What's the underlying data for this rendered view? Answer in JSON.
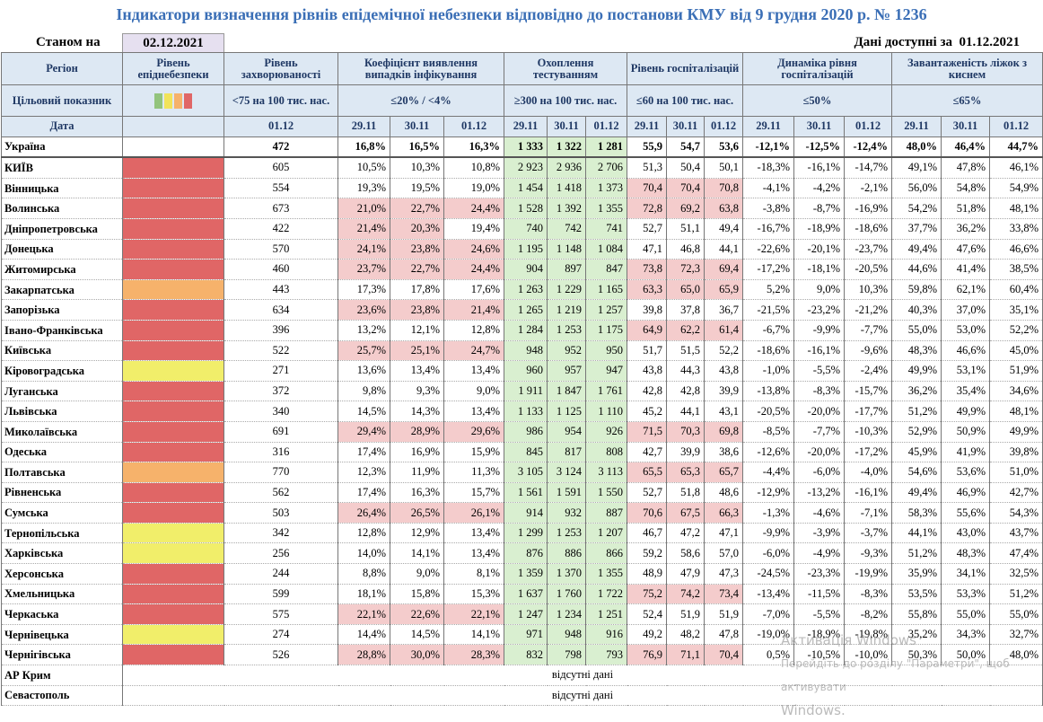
{
  "title": "Індикатори визначення рівнів епідемічної небезпеки відповідно до постанови КМУ від 9 грудня 2020 р. № 1236",
  "status": {
    "as_of_label": "Станом на",
    "as_of_date": "02.12.2021",
    "available_label": "Дані доступні за",
    "available_date": "01.12.2021"
  },
  "header": {
    "groups": [
      "Регіон",
      "Рівень епіднебезпеки",
      "Рівень захворюваності",
      "Коефіцієнт виявлення випадків інфікування",
      "Охоплення тестуванням",
      "Рівень госпіталізацій",
      "Динаміка рівня госпіталізацій",
      "Завантаженість ліжок з киснем"
    ],
    "target_label": "Цільовий показник",
    "targets": [
      "<75 на 100 тис. нас.",
      "≤20% / <4%",
      "≥300 на 100 тис. нас.",
      "≤60 на 100 тис. нас.",
      "≤50%",
      "≤65%"
    ],
    "date_label": "Дата",
    "dates": [
      "01.12",
      "29.11",
      "30.11",
      "01.12",
      "29.11",
      "30.11",
      "01.12",
      "29.11",
      "30.11",
      "01.12",
      "29.11",
      "30.11",
      "01.12",
      "29.11",
      "30.11",
      "01.12"
    ]
  },
  "level_legend_colors": [
    "#93c47d",
    "#f1e35a",
    "#f6b26b",
    "#e06666"
  ],
  "alert_color": "#f4cccc",
  "testing_color": "#d9efd0",
  "rows": [
    {
      "region": "Україна",
      "values": [
        "472",
        "16,8%",
        "16,5%",
        "16,3%",
        "1 333",
        "1 322",
        "1 281",
        "55,9",
        "54,7",
        "53,6",
        "-12,1%",
        "-12,5%",
        "-12,4%",
        "48,0%",
        "46,4%",
        "44,7%"
      ],
      "alert": []
    },
    {
      "region": "КИЇВ",
      "level_color": "#e06666",
      "values": [
        "605",
        "10,5%",
        "10,3%",
        "10,8%",
        "2 923",
        "2 936",
        "2 706",
        "51,3",
        "50,4",
        "50,1",
        "-18,3%",
        "-16,1%",
        "-14,7%",
        "49,1%",
        "47,8%",
        "46,1%"
      ],
      "alert": []
    },
    {
      "region": "Вінницька",
      "level_color": "#e06666",
      "values": [
        "554",
        "19,3%",
        "19,5%",
        "19,0%",
        "1 454",
        "1 418",
        "1 373",
        "70,4",
        "70,4",
        "70,8",
        "-4,1%",
        "-4,2%",
        "-2,1%",
        "56,0%",
        "54,8%",
        "54,9%"
      ],
      "alert": [
        7,
        8,
        9
      ]
    },
    {
      "region": "Волинська",
      "level_color": "#e06666",
      "values": [
        "673",
        "21,0%",
        "22,7%",
        "24,4%",
        "1 528",
        "1 392",
        "1 355",
        "72,8",
        "69,2",
        "63,8",
        "-3,8%",
        "-8,7%",
        "-16,9%",
        "54,2%",
        "51,8%",
        "48,1%"
      ],
      "alert": [
        1,
        2,
        3,
        7,
        8,
        9
      ]
    },
    {
      "region": "Дніпропетровська",
      "level_color": "#e06666",
      "values": [
        "422",
        "21,4%",
        "20,3%",
        "19,4%",
        "740",
        "742",
        "741",
        "52,7",
        "51,1",
        "49,4",
        "-16,7%",
        "-18,9%",
        "-18,6%",
        "37,7%",
        "36,2%",
        "33,8%"
      ],
      "alert": [
        1,
        2
      ]
    },
    {
      "region": "Донецька",
      "level_color": "#e06666",
      "values": [
        "570",
        "24,1%",
        "23,8%",
        "24,6%",
        "1 195",
        "1 148",
        "1 084",
        "47,1",
        "46,8",
        "44,1",
        "-22,6%",
        "-20,1%",
        "-23,7%",
        "49,4%",
        "47,6%",
        "46,6%"
      ],
      "alert": [
        1,
        2,
        3
      ]
    },
    {
      "region": "Житомирська",
      "level_color": "#e06666",
      "values": [
        "460",
        "23,7%",
        "22,7%",
        "24,4%",
        "904",
        "897",
        "847",
        "73,8",
        "72,3",
        "69,4",
        "-17,2%",
        "-18,1%",
        "-20,5%",
        "44,6%",
        "41,4%",
        "38,5%"
      ],
      "alert": [
        1,
        2,
        3,
        7,
        8,
        9
      ]
    },
    {
      "region": "Закарпатська",
      "level_color": "#f6b26b",
      "values": [
        "443",
        "17,3%",
        "17,8%",
        "17,6%",
        "1 263",
        "1 229",
        "1 165",
        "63,3",
        "65,0",
        "65,9",
        "5,2%",
        "9,0%",
        "10,3%",
        "59,8%",
        "62,1%",
        "60,4%"
      ],
      "alert": [
        7,
        8,
        9
      ]
    },
    {
      "region": "Запорізька",
      "level_color": "#e06666",
      "values": [
        "634",
        "23,6%",
        "23,8%",
        "21,4%",
        "1 265",
        "1 219",
        "1 257",
        "39,8",
        "37,8",
        "36,7",
        "-21,5%",
        "-23,2%",
        "-21,2%",
        "40,3%",
        "37,0%",
        "35,1%"
      ],
      "alert": [
        1,
        2,
        3
      ]
    },
    {
      "region": "Івано-Франківська",
      "level_color": "#e06666",
      "values": [
        "396",
        "13,2%",
        "12,1%",
        "12,8%",
        "1 284",
        "1 253",
        "1 175",
        "64,9",
        "62,2",
        "61,4",
        "-6,7%",
        "-9,9%",
        "-7,7%",
        "55,0%",
        "53,0%",
        "52,2%"
      ],
      "alert": [
        7,
        8,
        9
      ]
    },
    {
      "region": "Київська",
      "level_color": "#e06666",
      "values": [
        "522",
        "25,7%",
        "25,1%",
        "24,7%",
        "948",
        "952",
        "950",
        "51,7",
        "51,5",
        "52,2",
        "-18,6%",
        "-16,1%",
        "-9,6%",
        "48,3%",
        "46,6%",
        "45,0%"
      ],
      "alert": [
        1,
        2,
        3
      ]
    },
    {
      "region": "Кіровоградська",
      "level_color": "#f1ee6a",
      "values": [
        "271",
        "13,6%",
        "13,4%",
        "13,4%",
        "960",
        "957",
        "947",
        "43,8",
        "44,3",
        "43,8",
        "-1,0%",
        "-5,5%",
        "-2,4%",
        "49,9%",
        "53,1%",
        "51,9%"
      ],
      "alert": []
    },
    {
      "region": "Луганська",
      "level_color": "#e06666",
      "values": [
        "372",
        "9,8%",
        "9,3%",
        "9,0%",
        "1 911",
        "1 847",
        "1 761",
        "42,8",
        "42,8",
        "39,9",
        "-13,8%",
        "-8,3%",
        "-15,7%",
        "36,2%",
        "35,4%",
        "34,6%"
      ],
      "alert": []
    },
    {
      "region": "Львівська",
      "level_color": "#e06666",
      "values": [
        "340",
        "14,5%",
        "14,3%",
        "13,4%",
        "1 133",
        "1 125",
        "1 110",
        "45,2",
        "44,1",
        "43,1",
        "-20,5%",
        "-20,0%",
        "-17,7%",
        "51,2%",
        "49,9%",
        "48,1%"
      ],
      "alert": []
    },
    {
      "region": "Миколаївська",
      "level_color": "#e06666",
      "values": [
        "691",
        "29,4%",
        "28,9%",
        "29,6%",
        "986",
        "954",
        "926",
        "71,5",
        "70,3",
        "69,8",
        "-8,5%",
        "-7,7%",
        "-10,3%",
        "52,9%",
        "50,9%",
        "49,9%"
      ],
      "alert": [
        1,
        2,
        3,
        7,
        8,
        9
      ]
    },
    {
      "region": "Одеська",
      "level_color": "#e06666",
      "values": [
        "316",
        "17,4%",
        "16,9%",
        "15,9%",
        "845",
        "817",
        "808",
        "42,7",
        "39,9",
        "38,6",
        "-12,6%",
        "-20,0%",
        "-17,2%",
        "45,9%",
        "41,9%",
        "39,8%"
      ],
      "alert": []
    },
    {
      "region": "Полтавська",
      "level_color": "#f6b26b",
      "values": [
        "770",
        "12,3%",
        "11,9%",
        "11,3%",
        "3 105",
        "3 124",
        "3 113",
        "65,5",
        "65,3",
        "65,7",
        "-4,4%",
        "-6,0%",
        "-4,0%",
        "54,6%",
        "53,6%",
        "51,0%"
      ],
      "alert": [
        7,
        8,
        9
      ]
    },
    {
      "region": "Рівненська",
      "level_color": "#e06666",
      "values": [
        "562",
        "17,4%",
        "16,3%",
        "15,7%",
        "1 561",
        "1 591",
        "1 550",
        "52,7",
        "51,8",
        "48,6",
        "-12,9%",
        "-13,2%",
        "-16,1%",
        "49,4%",
        "46,9%",
        "42,7%"
      ],
      "alert": []
    },
    {
      "region": "Сумська",
      "level_color": "#e06666",
      "values": [
        "503",
        "26,4%",
        "26,5%",
        "26,1%",
        "914",
        "932",
        "887",
        "70,6",
        "67,5",
        "66,3",
        "-1,3%",
        "-4,6%",
        "-7,1%",
        "58,3%",
        "55,6%",
        "54,3%"
      ],
      "alert": [
        1,
        2,
        3,
        7,
        8,
        9
      ]
    },
    {
      "region": "Тернопільська",
      "level_color": "#f1ee6a",
      "values": [
        "342",
        "12,8%",
        "12,9%",
        "13,4%",
        "1 299",
        "1 253",
        "1 207",
        "46,7",
        "47,2",
        "47,1",
        "-9,9%",
        "-3,9%",
        "-3,7%",
        "44,1%",
        "43,0%",
        "43,7%"
      ],
      "alert": []
    },
    {
      "region": "Харківська",
      "level_color": "#f1ee6a",
      "values": [
        "256",
        "14,0%",
        "14,1%",
        "13,4%",
        "876",
        "886",
        "866",
        "59,2",
        "58,6",
        "57,0",
        "-6,0%",
        "-4,9%",
        "-9,3%",
        "51,2%",
        "48,3%",
        "47,4%"
      ],
      "alert": []
    },
    {
      "region": "Херсонська",
      "level_color": "#e06666",
      "values": [
        "244",
        "8,8%",
        "9,0%",
        "8,1%",
        "1 359",
        "1 370",
        "1 355",
        "48,9",
        "47,9",
        "47,3",
        "-24,5%",
        "-23,3%",
        "-19,9%",
        "35,9%",
        "34,1%",
        "32,5%"
      ],
      "alert": []
    },
    {
      "region": "Хмельницька",
      "level_color": "#e06666",
      "values": [
        "599",
        "18,1%",
        "15,8%",
        "15,3%",
        "1 637",
        "1 760",
        "1 722",
        "75,2",
        "74,2",
        "73,4",
        "-13,4%",
        "-11,5%",
        "-8,3%",
        "53,5%",
        "53,3%",
        "51,2%"
      ],
      "alert": [
        7,
        8,
        9
      ]
    },
    {
      "region": "Черкаська",
      "level_color": "#e06666",
      "values": [
        "575",
        "22,1%",
        "22,6%",
        "22,1%",
        "1 247",
        "1 234",
        "1 251",
        "52,4",
        "51,9",
        "51,9",
        "-7,0%",
        "-5,5%",
        "-8,2%",
        "55,8%",
        "55,0%",
        "55,0%"
      ],
      "alert": [
        1,
        2,
        3
      ]
    },
    {
      "region": "Чернівецька",
      "level_color": "#f1ee6a",
      "values": [
        "274",
        "14,4%",
        "14,5%",
        "14,1%",
        "971",
        "948",
        "916",
        "49,2",
        "48,2",
        "47,8",
        "-19,0%",
        "-18,9%",
        "-19,8%",
        "35,2%",
        "34,3%",
        "32,7%"
      ],
      "alert": []
    },
    {
      "region": "Чернігівська",
      "level_color": "#e06666",
      "values": [
        "526",
        "28,8%",
        "30,0%",
        "28,3%",
        "832",
        "798",
        "793",
        "76,9",
        "71,1",
        "70,4",
        "0,5%",
        "-10,5%",
        "-10,0%",
        "50,3%",
        "50,0%",
        "48,0%"
      ],
      "alert": [
        1,
        2,
        3,
        7,
        8,
        9
      ]
    }
  ],
  "missing_rows": [
    {
      "region": "АР Крим",
      "note": "відсутні дані"
    },
    {
      "region": "Севастополь",
      "note": "відсутні дані"
    }
  ],
  "watermark": [
    "Активація Windows",
    "Перейдіть до розділу \"Параметри\", щоб активувати",
    "Windows."
  ]
}
